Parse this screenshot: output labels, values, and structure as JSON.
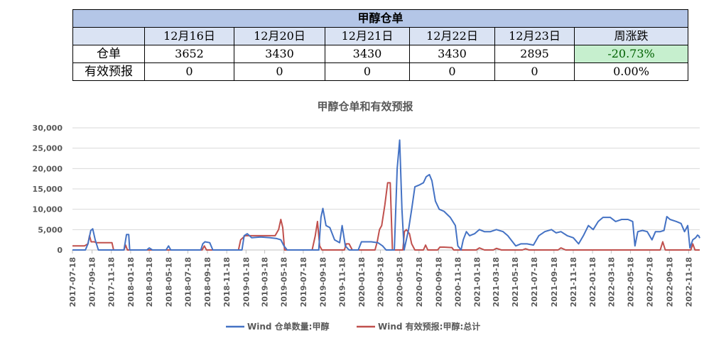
{
  "table": {
    "title": "甲醇仓单",
    "columns": [
      "12月16日",
      "12月20日",
      "12月21日",
      "12月22日",
      "12月23日",
      "周涨跌"
    ],
    "rows": [
      {
        "label": "仓单",
        "values": [
          "3652",
          "3430",
          "3430",
          "3430",
          "2895"
        ],
        "change": "-20.73%"
      },
      {
        "label": "有效预报",
        "values": [
          "0",
          "0",
          "0",
          "0",
          "0"
        ],
        "change": "0.00%"
      }
    ]
  },
  "chart_data": {
    "type": "line",
    "title": "甲醇仓单和有效预报",
    "ylim": [
      0,
      30000
    ],
    "yticks": [
      "0",
      "5,000",
      "10,000",
      "15,000",
      "20,000",
      "25,000",
      "30,000"
    ],
    "xlim": [
      "2017-07-18",
      "2022-12-23"
    ],
    "xticks": [
      "2017-07-18",
      "2017-09-18",
      "2017-11-18",
      "2018-01-18",
      "2018-03-18",
      "2018-05-18",
      "2018-07-18",
      "2018-09-18",
      "2018-11-18",
      "2019-01-18",
      "2019-03-18",
      "2019-05-18",
      "2019-07-18",
      "2019-09-18",
      "2019-11-18",
      "2020-01-18",
      "2020-03-18",
      "2020-05-18",
      "2020-07-18",
      "2020-09-18",
      "2020-11-18",
      "2021-01-18",
      "2021-03-18",
      "2021-05-18",
      "2021-07-18",
      "2021-09-18",
      "2021-11-18",
      "2022-01-18",
      "2022-03-18",
      "2022-05-18",
      "2022-07-18",
      "2022-09-18",
      "2022-11-18"
    ],
    "grid": "horizontal",
    "legend_position": "bottom",
    "series": [
      {
        "name": "Wind 仓单数量:甲醇",
        "color": "#4472c4",
        "points": [
          [
            "2017-07-18",
            0
          ],
          [
            "2017-08-28",
            0
          ],
          [
            "2017-09-05",
            1500
          ],
          [
            "2017-09-14",
            4800
          ],
          [
            "2017-09-20",
            5200
          ],
          [
            "2017-09-28",
            2500
          ],
          [
            "2017-10-08",
            0
          ],
          [
            "2017-12-28",
            0
          ],
          [
            "2018-01-05",
            3800
          ],
          [
            "2018-01-12",
            3800
          ],
          [
            "2018-01-15",
            0
          ],
          [
            "2018-03-10",
            0
          ],
          [
            "2018-03-18",
            500
          ],
          [
            "2018-03-28",
            0
          ],
          [
            "2018-05-10",
            0
          ],
          [
            "2018-05-18",
            1000
          ],
          [
            "2018-05-25",
            0
          ],
          [
            "2018-08-28",
            0
          ],
          [
            "2018-09-03",
            1500
          ],
          [
            "2018-09-10",
            2000
          ],
          [
            "2018-09-25",
            1800
          ],
          [
            "2018-10-05",
            0
          ],
          [
            "2019-01-05",
            0
          ],
          [
            "2019-01-12",
            3500
          ],
          [
            "2019-01-22",
            4000
          ],
          [
            "2019-02-05",
            3000
          ],
          [
            "2019-03-05",
            3200
          ],
          [
            "2019-04-05",
            3000
          ],
          [
            "2019-04-25",
            2800
          ],
          [
            "2019-05-08",
            2500
          ],
          [
            "2019-05-18",
            1000
          ],
          [
            "2019-05-28",
            0
          ],
          [
            "2019-09-05",
            0
          ],
          [
            "2019-09-12",
            8000
          ],
          [
            "2019-09-18",
            10200
          ],
          [
            "2019-09-28",
            6000
          ],
          [
            "2019-10-10",
            5500
          ],
          [
            "2019-10-25",
            2500
          ],
          [
            "2019-11-10",
            1800
          ],
          [
            "2019-11-18",
            6000
          ],
          [
            "2019-11-28",
            1000
          ],
          [
            "2019-12-10",
            0
          ],
          [
            "2020-01-08",
            0
          ],
          [
            "2020-01-18",
            2000
          ],
          [
            "2020-02-18",
            2000
          ],
          [
            "2020-03-10",
            1800
          ],
          [
            "2020-03-25",
            1000
          ],
          [
            "2020-04-05",
            0
          ],
          [
            "2020-05-01",
            0
          ],
          [
            "2020-05-10",
            20000
          ],
          [
            "2020-05-18",
            27000
          ],
          [
            "2020-05-25",
            10000
          ],
          [
            "2020-06-01",
            0
          ],
          [
            "2020-06-15",
            5000
          ],
          [
            "2020-06-25",
            10000
          ],
          [
            "2020-07-05",
            15500
          ],
          [
            "2020-07-20",
            16000
          ],
          [
            "2020-08-01",
            16500
          ],
          [
            "2020-08-10",
            18000
          ],
          [
            "2020-08-20",
            18500
          ],
          [
            "2020-08-28",
            17000
          ],
          [
            "2020-09-08",
            12000
          ],
          [
            "2020-09-20",
            10000
          ],
          [
            "2020-10-05",
            9500
          ],
          [
            "2020-10-25",
            8000
          ],
          [
            "2020-11-10",
            6000
          ],
          [
            "2020-11-18",
            1000
          ],
          [
            "2020-11-28",
            0
          ],
          [
            "2020-12-05",
            2500
          ],
          [
            "2020-12-15",
            4500
          ],
          [
            "2020-12-25",
            3500
          ],
          [
            "2021-01-10",
            4000
          ],
          [
            "2021-01-25",
            5000
          ],
          [
            "2021-02-10",
            4500
          ],
          [
            "2021-03-01",
            4500
          ],
          [
            "2021-03-20",
            5000
          ],
          [
            "2021-04-10",
            4500
          ],
          [
            "2021-04-25",
            3500
          ],
          [
            "2021-05-10",
            2000
          ],
          [
            "2021-05-20",
            1000
          ],
          [
            "2021-06-05",
            1500
          ],
          [
            "2021-06-25",
            1500
          ],
          [
            "2021-07-15",
            1200
          ],
          [
            "2021-08-01",
            3500
          ],
          [
            "2021-08-20",
            4500
          ],
          [
            "2021-09-10",
            5000
          ],
          [
            "2021-09-25",
            4200
          ],
          [
            "2021-10-10",
            4500
          ],
          [
            "2021-10-30",
            3500
          ],
          [
            "2021-11-18",
            3000
          ],
          [
            "2021-12-05",
            1500
          ],
          [
            "2021-12-20",
            3500
          ],
          [
            "2022-01-05",
            6000
          ],
          [
            "2022-01-20",
            5000
          ],
          [
            "2022-02-05",
            7000
          ],
          [
            "2022-02-20",
            8000
          ],
          [
            "2022-03-15",
            8000
          ],
          [
            "2022-04-01",
            7000
          ],
          [
            "2022-04-20",
            7500
          ],
          [
            "2022-05-10",
            7500
          ],
          [
            "2022-05-25",
            7000
          ],
          [
            "2022-06-01",
            1000
          ],
          [
            "2022-06-10",
            4500
          ],
          [
            "2022-06-25",
            4800
          ],
          [
            "2022-07-10",
            4500
          ],
          [
            "2022-07-25",
            2500
          ],
          [
            "2022-08-05",
            4500
          ],
          [
            "2022-08-20",
            4500
          ],
          [
            "2022-09-01",
            4800
          ],
          [
            "2022-09-10",
            8200
          ],
          [
            "2022-09-20",
            7500
          ],
          [
            "2022-10-10",
            7000
          ],
          [
            "2022-10-25",
            6500
          ],
          [
            "2022-11-05",
            4500
          ],
          [
            "2022-11-15",
            6000
          ],
          [
            "2022-11-22",
            500
          ],
          [
            "2022-12-01",
            2500
          ],
          [
            "2022-12-10",
            3000
          ],
          [
            "2022-12-16",
            3652
          ],
          [
            "2022-12-20",
            3430
          ],
          [
            "2022-12-23",
            2895
          ]
        ]
      },
      {
        "name": "Wind 有效预报:甲醇:总计",
        "color": "#c0504d",
        "points": [
          [
            "2017-07-18",
            1000
          ],
          [
            "2017-08-25",
            1000
          ],
          [
            "2017-09-05",
            1500
          ],
          [
            "2017-09-10",
            3500
          ],
          [
            "2017-09-15",
            2000
          ],
          [
            "2017-09-25",
            2000
          ],
          [
            "2017-10-01",
            1800
          ],
          [
            "2017-11-20",
            1800
          ],
          [
            "2017-11-25",
            0
          ],
          [
            "2017-12-28",
            0
          ],
          [
            "2018-01-02",
            1200
          ],
          [
            "2018-01-08",
            0
          ],
          [
            "2018-09-01",
            0
          ],
          [
            "2018-09-08",
            1000
          ],
          [
            "2018-09-15",
            0
          ],
          [
            "2018-12-25",
            0
          ],
          [
            "2019-01-01",
            2500
          ],
          [
            "2019-01-08",
            3000
          ],
          [
            "2019-01-15",
            3500
          ],
          [
            "2019-04-20",
            3500
          ],
          [
            "2019-05-01",
            5000
          ],
          [
            "2019-05-08",
            7500
          ],
          [
            "2019-05-14",
            5500
          ],
          [
            "2019-05-20",
            0
          ],
          [
            "2019-08-15",
            0
          ],
          [
            "2019-08-25",
            3500
          ],
          [
            "2019-09-01",
            7000
          ],
          [
            "2019-09-08",
            1000
          ],
          [
            "2019-09-15",
            0
          ],
          [
            "2019-11-25",
            0
          ],
          [
            "2019-12-01",
            1500
          ],
          [
            "2019-12-10",
            1500
          ],
          [
            "2019-12-20",
            0
          ],
          [
            "2020-03-01",
            0
          ],
          [
            "2020-03-08",
            2000
          ],
          [
            "2020-03-15",
            5000
          ],
          [
            "2020-03-22",
            6000
          ],
          [
            "2020-04-01",
            11000
          ],
          [
            "2020-04-10",
            16500
          ],
          [
            "2020-04-18",
            16500
          ],
          [
            "2020-04-25",
            0
          ],
          [
            "2020-05-28",
            0
          ],
          [
            "2020-06-02",
            4500
          ],
          [
            "2020-06-08",
            5000
          ],
          [
            "2020-06-18",
            4000
          ],
          [
            "2020-06-25",
            1500
          ],
          [
            "2020-07-05",
            0
          ],
          [
            "2020-08-01",
            0
          ],
          [
            "2020-08-08",
            1200
          ],
          [
            "2020-08-15",
            0
          ],
          [
            "2020-09-15",
            0
          ],
          [
            "2020-09-22",
            700
          ],
          [
            "2020-10-05",
            700
          ],
          [
            "2020-10-30",
            600
          ],
          [
            "2020-11-05",
            0
          ],
          [
            "2021-01-15",
            0
          ],
          [
            "2021-01-25",
            500
          ],
          [
            "2021-02-10",
            0
          ],
          [
            "2021-03-10",
            0
          ],
          [
            "2021-03-20",
            400
          ],
          [
            "2021-04-05",
            0
          ],
          [
            "2021-06-10",
            0
          ],
          [
            "2021-06-20",
            300
          ],
          [
            "2021-07-01",
            0
          ],
          [
            "2021-10-01",
            0
          ],
          [
            "2021-10-10",
            500
          ],
          [
            "2021-10-25",
            0
          ],
          [
            "2022-08-20",
            0
          ],
          [
            "2022-08-28",
            2000
          ],
          [
            "2022-09-05",
            0
          ],
          [
            "2022-11-25",
            0
          ],
          [
            "2022-12-01",
            1500
          ],
          [
            "2022-12-08",
            0
          ],
          [
            "2022-12-23",
            0
          ]
        ]
      }
    ]
  }
}
